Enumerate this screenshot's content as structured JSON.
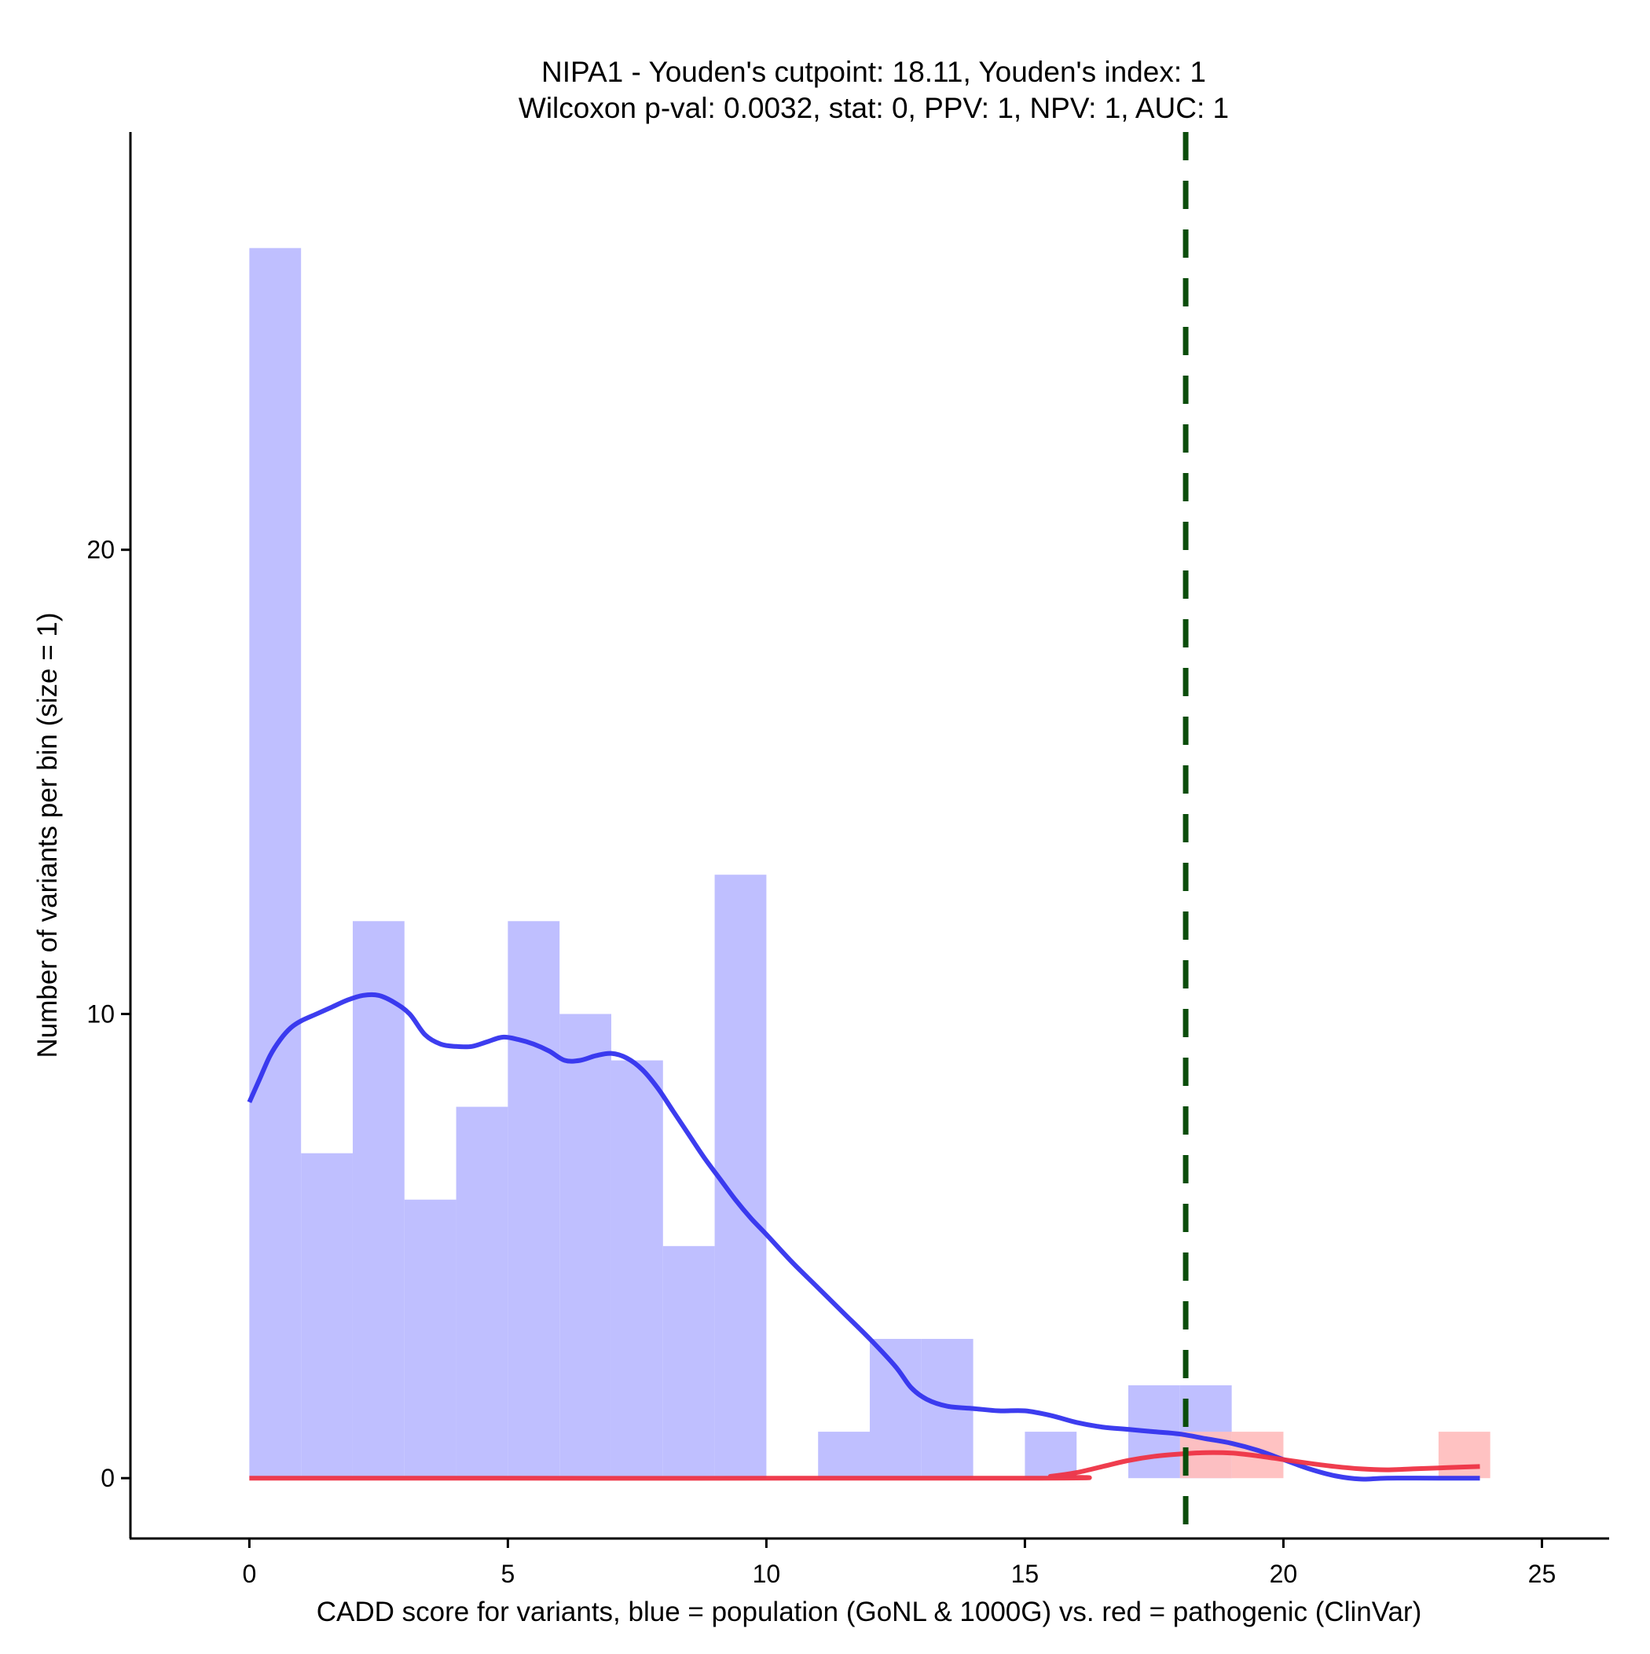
{
  "chart_data": {
    "type": "bar",
    "title": "NIPA1 - Youden's cutpoint: 18.11, Youden's index: 1",
    "subtitle": "Wilcoxon p-val: 0.0032, stat: 0, PPV: 1, NPV: 1, AUC: 1",
    "xlabel": "CADD score for variants, blue = population (GoNL & 1000G) vs. red = pathogenic (ClinVar)",
    "ylabel": "Number of variants per bin (size = 1)",
    "xlim": [
      -2.3,
      26.3
    ],
    "ylim": [
      -1.3,
      29.0
    ],
    "x_ticks": [
      0,
      5,
      10,
      15,
      20,
      25
    ],
    "x_tick_labels": [
      "0",
      "5",
      "10",
      "15",
      "20",
      "25"
    ],
    "y_ticks": [
      0,
      10,
      20
    ],
    "y_tick_labels": [
      "0",
      "10",
      "20"
    ],
    "bin_size": 1,
    "cutpoint": 18.11,
    "cutpoint_color": "#0b4d0b",
    "series": [
      {
        "name": "population",
        "label": "population (GoNL & 1000G)",
        "color": "#bfbfff",
        "density_color": "#3333ee",
        "bins": [
          [
            0,
            26.5
          ],
          [
            1,
            7
          ],
          [
            2,
            12
          ],
          [
            3,
            6
          ],
          [
            4,
            8
          ],
          [
            5,
            12
          ],
          [
            6,
            10
          ],
          [
            7,
            9
          ],
          [
            8,
            5
          ],
          [
            9,
            13
          ],
          [
            10,
            0
          ],
          [
            11,
            1
          ],
          [
            12,
            3
          ],
          [
            13,
            3
          ],
          [
            14,
            0
          ],
          [
            15,
            1
          ],
          [
            16,
            0
          ],
          [
            17,
            2
          ],
          [
            18,
            2
          ],
          [
            19,
            0
          ],
          [
            20,
            0
          ],
          [
            21,
            0
          ],
          [
            22,
            0
          ],
          [
            23,
            0
          ]
        ],
        "density": [
          [
            0.0,
            8.1
          ],
          [
            0.2,
            8.6
          ],
          [
            0.4,
            9.1
          ],
          [
            0.6,
            9.45
          ],
          [
            0.8,
            9.7
          ],
          [
            1.0,
            9.85
          ],
          [
            1.3,
            10.0
          ],
          [
            1.6,
            10.15
          ],
          [
            1.9,
            10.3
          ],
          [
            2.2,
            10.4
          ],
          [
            2.5,
            10.4
          ],
          [
            2.8,
            10.25
          ],
          [
            3.1,
            10.0
          ],
          [
            3.4,
            9.55
          ],
          [
            3.7,
            9.35
          ],
          [
            4.0,
            9.3
          ],
          [
            4.3,
            9.3
          ],
          [
            4.6,
            9.4
          ],
          [
            4.9,
            9.5
          ],
          [
            5.2,
            9.45
          ],
          [
            5.5,
            9.35
          ],
          [
            5.8,
            9.2
          ],
          [
            6.1,
            9.0
          ],
          [
            6.4,
            9.0
          ],
          [
            6.7,
            9.1
          ],
          [
            7.0,
            9.15
          ],
          [
            7.3,
            9.05
          ],
          [
            7.6,
            8.8
          ],
          [
            7.9,
            8.4
          ],
          [
            8.2,
            7.9
          ],
          [
            8.5,
            7.4
          ],
          [
            8.8,
            6.9
          ],
          [
            9.1,
            6.45
          ],
          [
            9.4,
            6.0
          ],
          [
            9.7,
            5.6
          ],
          [
            10.0,
            5.25
          ],
          [
            10.5,
            4.65
          ],
          [
            11.0,
            4.1
          ],
          [
            11.5,
            3.55
          ],
          [
            12.0,
            3.0
          ],
          [
            12.5,
            2.4
          ],
          [
            12.8,
            1.95
          ],
          [
            13.1,
            1.7
          ],
          [
            13.5,
            1.55
          ],
          [
            14.0,
            1.5
          ],
          [
            14.5,
            1.45
          ],
          [
            15.0,
            1.45
          ],
          [
            15.5,
            1.35
          ],
          [
            16.0,
            1.2
          ],
          [
            16.5,
            1.1
          ],
          [
            17.0,
            1.05
          ],
          [
            17.5,
            1.0
          ],
          [
            18.0,
            0.95
          ],
          [
            18.5,
            0.85
          ],
          [
            19.0,
            0.75
          ],
          [
            19.5,
            0.6
          ],
          [
            20.0,
            0.4
          ],
          [
            20.5,
            0.2
          ],
          [
            21.0,
            0.05
          ],
          [
            21.5,
            -0.02
          ],
          [
            22.0,
            0.0
          ],
          [
            23.0,
            0.0
          ],
          [
            23.8,
            0.0
          ]
        ]
      },
      {
        "name": "pathogenic",
        "label": "pathogenic (ClinVar)",
        "color": "#ffbfbf",
        "density_color": "#ee3344",
        "bins": [
          [
            18,
            1
          ],
          [
            19,
            1
          ],
          [
            23,
            1
          ]
        ],
        "density": [
          [
            0.0,
            0.0
          ],
          [
            15.0,
            0.0
          ],
          [
            15.5,
            0.04
          ],
          [
            16.0,
            0.12
          ],
          [
            16.5,
            0.25
          ],
          [
            17.0,
            0.38
          ],
          [
            17.5,
            0.47
          ],
          [
            18.0,
            0.52
          ],
          [
            18.5,
            0.55
          ],
          [
            19.0,
            0.54
          ],
          [
            19.5,
            0.48
          ],
          [
            20.0,
            0.4
          ],
          [
            20.5,
            0.32
          ],
          [
            21.0,
            0.25
          ],
          [
            21.5,
            0.2
          ],
          [
            22.0,
            0.18
          ],
          [
            22.5,
            0.2
          ],
          [
            23.0,
            0.22
          ],
          [
            23.5,
            0.24
          ],
          [
            23.8,
            0.25
          ]
        ]
      }
    ]
  }
}
